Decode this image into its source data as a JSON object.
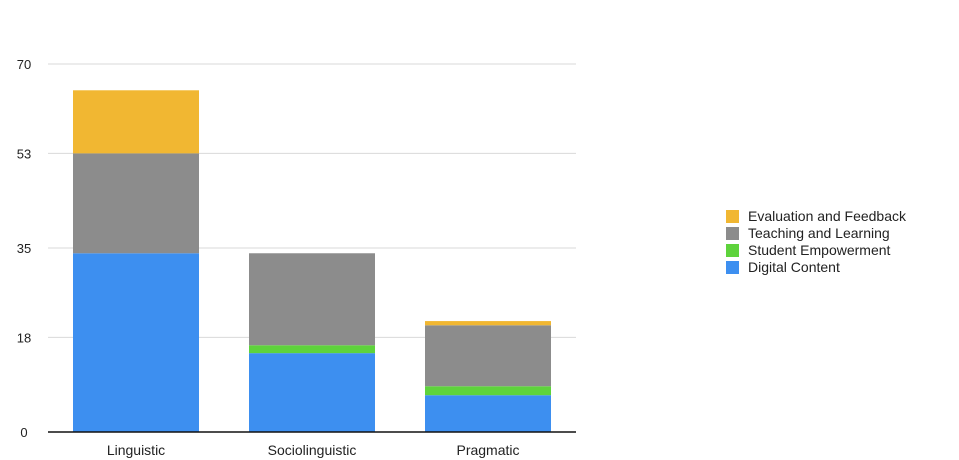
{
  "chart_data": {
    "type": "bar",
    "stacked": true,
    "categories": [
      "Linguistic",
      "Sociolinguistic",
      "Pragmatic"
    ],
    "series": [
      {
        "name": "Digital Content",
        "color": "#3d8ff0",
        "values": [
          34,
          15,
          7
        ]
      },
      {
        "name": "Student Empowerment",
        "color": "#5ed33c",
        "values": [
          0,
          1.5,
          1.7
        ]
      },
      {
        "name": "Teaching and Learning",
        "color": "#8c8c8c",
        "values": [
          19,
          17.5,
          11.6
        ]
      },
      {
        "name": "Evaluation and Feedback",
        "color": "#f1b732",
        "values": [
          12,
          0,
          0.8
        ]
      }
    ],
    "yticks": [
      "0",
      "18",
      "35",
      "53",
      "70"
    ],
    "ylim": [
      0,
      70
    ],
    "grid": true,
    "legend_position": "right",
    "legend_order": [
      "Evaluation and Feedback",
      "Teaching and Learning",
      "Student Empowerment",
      "Digital Content"
    ]
  }
}
